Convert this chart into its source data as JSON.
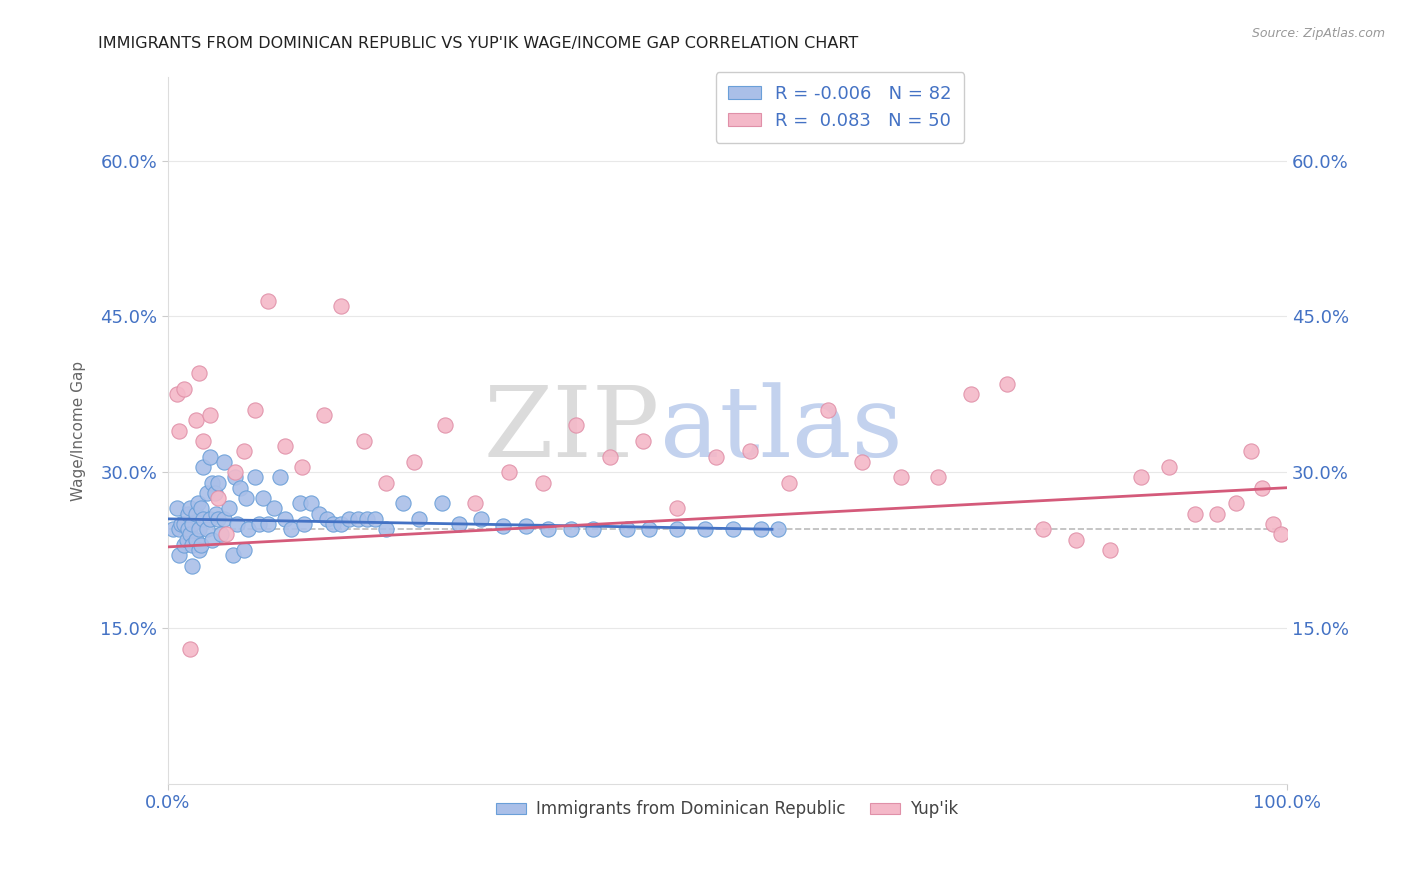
{
  "title": "IMMIGRANTS FROM DOMINICAN REPUBLIC VS YUP'IK WAGE/INCOME GAP CORRELATION CHART",
  "source_text": "Source: ZipAtlas.com",
  "ylabel": "Wage/Income Gap",
  "xlim": [
    0,
    1
  ],
  "ylim": [
    0.0,
    0.68
  ],
  "xtick_labels": [
    "0.0%",
    "100.0%"
  ],
  "ytick_positions": [
    0.15,
    0.3,
    0.45,
    0.6
  ],
  "ytick_labels": [
    "15.0%",
    "30.0%",
    "45.0%",
    "60.0%"
  ],
  "dashed_hline": 0.245,
  "blue_fill_color": "#AABFE8",
  "blue_edge_color": "#6A9FD8",
  "pink_fill_color": "#F4B8C8",
  "pink_edge_color": "#E090A8",
  "blue_line_color": "#4472C4",
  "pink_line_color": "#D45A7A",
  "R_blue": -0.006,
  "N_blue": 82,
  "R_pink": 0.083,
  "N_pink": 50,
  "blue_line_x0": 0.0,
  "blue_line_x1": 0.54,
  "blue_line_y0": 0.255,
  "blue_line_y1": 0.245,
  "pink_line_x0": 0.0,
  "pink_line_x1": 1.0,
  "pink_line_y0": 0.228,
  "pink_line_y1": 0.285,
  "blue_scatter_x": [
    0.005,
    0.008,
    0.01,
    0.01,
    0.012,
    0.015,
    0.015,
    0.017,
    0.018,
    0.018,
    0.02,
    0.02,
    0.022,
    0.022,
    0.022,
    0.025,
    0.025,
    0.027,
    0.028,
    0.028,
    0.03,
    0.03,
    0.032,
    0.032,
    0.035,
    0.035,
    0.038,
    0.038,
    0.04,
    0.04,
    0.042,
    0.043,
    0.045,
    0.045,
    0.048,
    0.05,
    0.05,
    0.055,
    0.058,
    0.06,
    0.062,
    0.065,
    0.068,
    0.07,
    0.072,
    0.078,
    0.082,
    0.085,
    0.09,
    0.095,
    0.1,
    0.105,
    0.11,
    0.118,
    0.122,
    0.128,
    0.135,
    0.142,
    0.148,
    0.155,
    0.162,
    0.17,
    0.178,
    0.185,
    0.195,
    0.21,
    0.225,
    0.245,
    0.26,
    0.28,
    0.3,
    0.32,
    0.34,
    0.36,
    0.38,
    0.41,
    0.43,
    0.455,
    0.48,
    0.505,
    0.53,
    0.545
  ],
  "blue_scatter_y": [
    0.245,
    0.265,
    0.245,
    0.22,
    0.25,
    0.25,
    0.23,
    0.235,
    0.245,
    0.26,
    0.24,
    0.265,
    0.25,
    0.23,
    0.21,
    0.26,
    0.235,
    0.27,
    0.245,
    0.225,
    0.265,
    0.23,
    0.305,
    0.255,
    0.28,
    0.245,
    0.315,
    0.255,
    0.29,
    0.235,
    0.28,
    0.26,
    0.29,
    0.255,
    0.24,
    0.31,
    0.255,
    0.265,
    0.22,
    0.295,
    0.25,
    0.285,
    0.225,
    0.275,
    0.245,
    0.295,
    0.25,
    0.275,
    0.25,
    0.265,
    0.295,
    0.255,
    0.245,
    0.27,
    0.25,
    0.27,
    0.26,
    0.255,
    0.25,
    0.25,
    0.255,
    0.255,
    0.255,
    0.255,
    0.245,
    0.27,
    0.255,
    0.27,
    0.25,
    0.255,
    0.248,
    0.248,
    0.245,
    0.245,
    0.245,
    0.245,
    0.245,
    0.245,
    0.245,
    0.245,
    0.245,
    0.245
  ],
  "pink_scatter_x": [
    0.008,
    0.01,
    0.015,
    0.02,
    0.025,
    0.028,
    0.032,
    0.038,
    0.045,
    0.052,
    0.06,
    0.068,
    0.078,
    0.09,
    0.105,
    0.12,
    0.14,
    0.155,
    0.175,
    0.195,
    0.22,
    0.248,
    0.275,
    0.305,
    0.335,
    0.365,
    0.395,
    0.425,
    0.455,
    0.49,
    0.52,
    0.555,
    0.59,
    0.62,
    0.655,
    0.688,
    0.718,
    0.75,
    0.782,
    0.812,
    0.842,
    0.87,
    0.895,
    0.918,
    0.938,
    0.955,
    0.968,
    0.978,
    0.988,
    0.995
  ],
  "pink_scatter_y": [
    0.375,
    0.34,
    0.38,
    0.13,
    0.35,
    0.395,
    0.33,
    0.355,
    0.275,
    0.24,
    0.3,
    0.32,
    0.36,
    0.465,
    0.325,
    0.305,
    0.355,
    0.46,
    0.33,
    0.29,
    0.31,
    0.345,
    0.27,
    0.3,
    0.29,
    0.345,
    0.315,
    0.33,
    0.265,
    0.315,
    0.32,
    0.29,
    0.36,
    0.31,
    0.295,
    0.295,
    0.375,
    0.385,
    0.245,
    0.235,
    0.225,
    0.295,
    0.305,
    0.26,
    0.26,
    0.27,
    0.32,
    0.285,
    0.25,
    0.24
  ],
  "watermark_zip_color": "#CCCCCC",
  "watermark_atlas_color": "#AABFE8",
  "background_color": "#FFFFFF",
  "grid_color": "#E8E8E8"
}
